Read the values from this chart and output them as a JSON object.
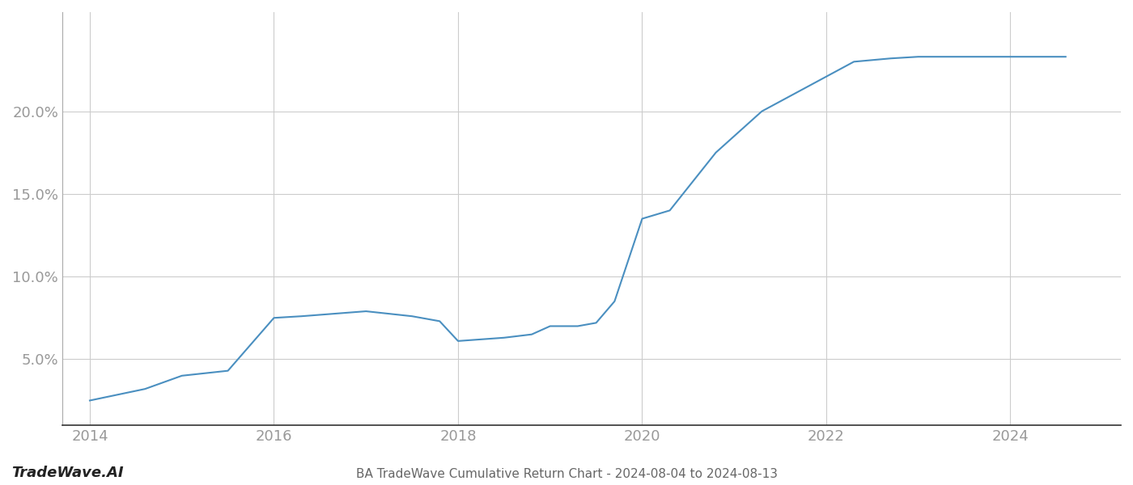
{
  "x_years": [
    2014,
    2014.6,
    2015.0,
    2015.5,
    2016.0,
    2016.3,
    2017.0,
    2017.5,
    2017.8,
    2018.0,
    2018.5,
    2018.8,
    2019.0,
    2019.3,
    2019.5,
    2019.7,
    2020.0,
    2020.3,
    2020.8,
    2021.3,
    2021.8,
    2022.3,
    2022.7,
    2023.0,
    2023.2,
    2024.0,
    2024.6
  ],
  "y_values": [
    2.5,
    3.2,
    4.0,
    4.3,
    7.5,
    7.6,
    7.9,
    7.6,
    7.3,
    6.1,
    6.3,
    6.5,
    7.0,
    7.0,
    7.2,
    8.5,
    13.5,
    14.0,
    17.5,
    20.0,
    21.5,
    23.0,
    23.2,
    23.3,
    23.3,
    23.3,
    23.3
  ],
  "line_color": "#4a8fc0",
  "line_width": 1.5,
  "title": "BA TradeWave Cumulative Return Chart - 2024-08-04 to 2024-08-13",
  "watermark": "TradeWave.AI",
  "background_color": "#ffffff",
  "grid_color": "#cccccc",
  "grid_linewidth": 0.8,
  "tick_label_color": "#999999",
  "title_color": "#666666",
  "watermark_color": "#222222",
  "xlim": [
    2013.7,
    2025.2
  ],
  "ylim": [
    1.0,
    26.0
  ],
  "yticks": [
    5.0,
    10.0,
    15.0,
    20.0
  ],
  "xticks": [
    2014,
    2016,
    2018,
    2020,
    2022,
    2024
  ],
  "ytick_fontsize": 13,
  "xtick_fontsize": 13,
  "title_fontsize": 11,
  "watermark_fontsize": 13
}
